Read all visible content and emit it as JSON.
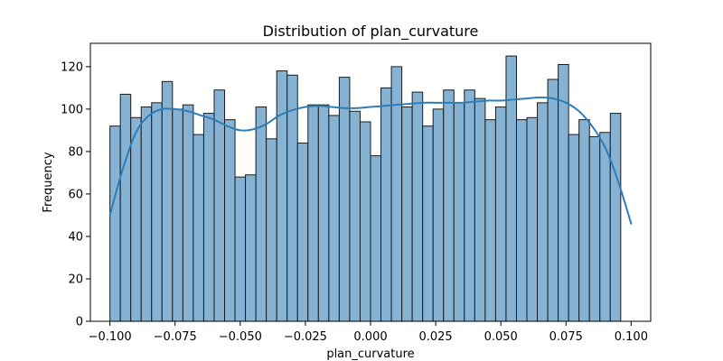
{
  "chart_data": {
    "type": "bar",
    "title": "Distribution of plan_curvature",
    "xlabel": "plan_curvature",
    "ylabel": "Frequency",
    "xlim": [
      -0.1075,
      0.1075
    ],
    "ylim": [
      0,
      131
    ],
    "xticks": [
      -0.1,
      -0.075,
      -0.05,
      -0.025,
      0.0,
      0.025,
      0.05,
      0.075,
      0.1
    ],
    "xtick_labels": [
      "−0.100",
      "−0.075",
      "−0.050",
      "−0.025",
      "0.000",
      "0.025",
      "0.050",
      "0.075",
      "0.100"
    ],
    "yticks": [
      0,
      20,
      40,
      60,
      80,
      100,
      120
    ],
    "ytick_labels": [
      "0",
      "20",
      "40",
      "60",
      "80",
      "100",
      "120"
    ],
    "bin_start": -0.1,
    "bin_end": 0.1,
    "bins": 50,
    "values": [
      92,
      107,
      96,
      101,
      103,
      113,
      100,
      102,
      88,
      98,
      109,
      95,
      68,
      69,
      101,
      86,
      118,
      116,
      84,
      102,
      102,
      97,
      115,
      99,
      94,
      78,
      110,
      120,
      101,
      108,
      92,
      100,
      109,
      103,
      109,
      105,
      95,
      101,
      125,
      95,
      96,
      103,
      114,
      121,
      88,
      95,
      87,
      89,
      98,
      0
    ],
    "kde": {
      "x": [
        -0.1,
        -0.095,
        -0.09,
        -0.085,
        -0.08,
        -0.075,
        -0.07,
        -0.065,
        -0.06,
        -0.055,
        -0.05,
        -0.045,
        -0.04,
        -0.035,
        -0.03,
        -0.025,
        -0.02,
        -0.015,
        -0.01,
        -0.005,
        0.0,
        0.005,
        0.01,
        0.015,
        0.02,
        0.025,
        0.03,
        0.035,
        0.04,
        0.045,
        0.05,
        0.055,
        0.06,
        0.065,
        0.07,
        0.075,
        0.08,
        0.085,
        0.09,
        0.095,
        0.1
      ],
      "y": [
        50,
        72,
        89,
        97,
        100,
        100,
        99,
        97,
        95,
        92,
        90,
        90.5,
        93,
        97,
        99.5,
        101,
        101.5,
        101,
        100.5,
        100.5,
        101,
        101.5,
        102,
        102.5,
        103,
        103,
        103,
        103,
        103.5,
        104,
        104,
        104.5,
        105,
        105.5,
        105,
        103,
        99,
        92,
        82,
        66,
        46
      ]
    },
    "colors": {
      "bar_fill": "#86b3d4",
      "bar_edge": "#1b1b1b",
      "kde_line": "#2f7db6",
      "axis": "#000000"
    },
    "grid": false,
    "legend": "none"
  }
}
